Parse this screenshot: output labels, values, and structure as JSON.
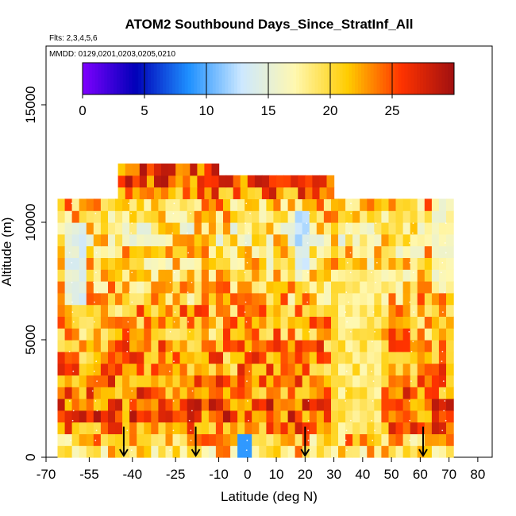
{
  "chart_data": {
    "type": "heatmap",
    "title": "ATOM2 Southbound Days_Since_StratInf_All",
    "flights_note": "Flts: 2,3,4,5,6",
    "dates_note": "MMDD: 0129,0201,0203,0205,0210",
    "xlabel": "Latitude (deg N)",
    "ylabel": "Altitude (m)",
    "xlim": [
      -70,
      85
    ],
    "ylim": [
      0,
      17500
    ],
    "xticks": [
      -70,
      -55,
      -40,
      -25,
      -10,
      0,
      10,
      20,
      30,
      40,
      50,
      60,
      70,
      80
    ],
    "xtick_labels": [
      "-70",
      "-55",
      "-40",
      "-25",
      "-10",
      "0",
      "10",
      "20",
      "30",
      "40",
      "50",
      "60",
      "70",
      "80"
    ],
    "yticks": [
      0,
      5000,
      10000,
      15000
    ],
    "ytick_labels": [
      "0",
      "5000",
      "10000",
      "15000"
    ],
    "colorbar": {
      "min": 0,
      "max": 30,
      "ticks": [
        0,
        5,
        10,
        15,
        20,
        25
      ],
      "tick_labels": [
        "0",
        "5",
        "10",
        "15",
        "20",
        "25"
      ],
      "colors": [
        "#7f00ff",
        "#0000b8",
        "#1e90ff",
        "#cde8ff",
        "#fff8b0",
        "#ffcc00",
        "#ff3300",
        "#a01010"
      ]
    },
    "arrows_latitude": [
      -43,
      -18,
      20,
      61
    ],
    "grid": {
      "lat_step": 2.5,
      "alt_step": 500,
      "rows": [
        {
          "alt": 250,
          "from": -66,
          "to": 71,
          "mean": 20,
          "notes": "low-altitude band; light blue near equator"
        },
        {
          "alt": 750,
          "from": -66,
          "to": 71,
          "mean": 21
        },
        {
          "alt": 1250,
          "from": -66,
          "to": 71,
          "mean": 24
        },
        {
          "alt": 1750,
          "from": -66,
          "to": 71,
          "mean": 25
        },
        {
          "alt": 2250,
          "from": -66,
          "to": 71,
          "mean": 25
        },
        {
          "alt": 2750,
          "from": -66,
          "to": 71,
          "mean": 24
        },
        {
          "alt": 3250,
          "from": -66,
          "to": 71,
          "mean": 24
        },
        {
          "alt": 3750,
          "from": -66,
          "to": 71,
          "mean": 23
        },
        {
          "alt": 4250,
          "from": -66,
          "to": 71,
          "mean": 23
        },
        {
          "alt": 4750,
          "from": -66,
          "to": 71,
          "mean": 23
        },
        {
          "alt": 5250,
          "from": -66,
          "to": 71,
          "mean": 22
        },
        {
          "alt": 5750,
          "from": -66,
          "to": 71,
          "mean": 22
        },
        {
          "alt": 6250,
          "from": -66,
          "to": 71,
          "mean": 22
        },
        {
          "alt": 6750,
          "from": -66,
          "to": 71,
          "mean": 21
        },
        {
          "alt": 7250,
          "from": -66,
          "to": 71,
          "mean": 21
        },
        {
          "alt": 7750,
          "from": -66,
          "to": 71,
          "mean": 20
        },
        {
          "alt": 8250,
          "from": -66,
          "to": 71,
          "mean": 20
        },
        {
          "alt": 8750,
          "from": -66,
          "to": 71,
          "mean": 20
        },
        {
          "alt": 9250,
          "from": -66,
          "to": 71,
          "mean": 19
        },
        {
          "alt": 9750,
          "from": -66,
          "to": 71,
          "mean": 19
        },
        {
          "alt": 10250,
          "from": -66,
          "to": 71,
          "mean": 20
        },
        {
          "alt": 10750,
          "from": -66,
          "to": 71,
          "mean": 21
        },
        {
          "alt": 11250,
          "from": -45,
          "to": 30,
          "mean": 24
        },
        {
          "alt": 11750,
          "from": -45,
          "to": 30,
          "mean": 25
        },
        {
          "alt": 12250,
          "from": -45,
          "to": -10,
          "mean": 26
        }
      ]
    }
  }
}
